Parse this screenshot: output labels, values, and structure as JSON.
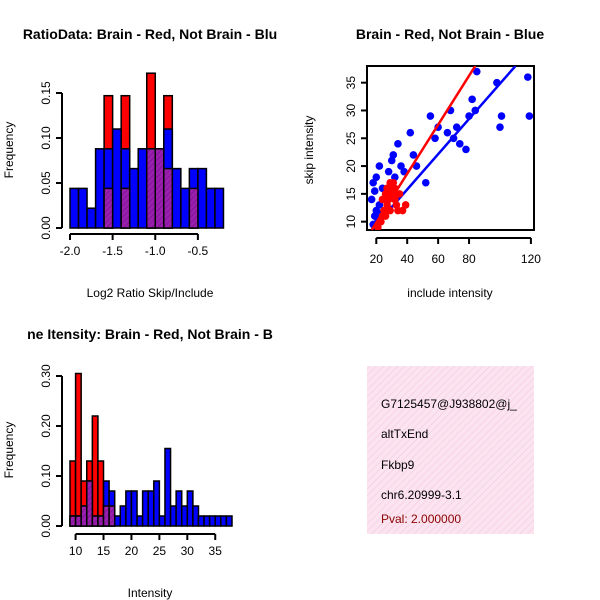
{
  "chart_data": [
    {
      "type": "bar",
      "title": "RatioData: Brain - Red, Not Brain - Blu",
      "xlabel": "Log2 Ratio Skip/Include",
      "ylabel": "Frequency",
      "xlim": [
        -2.0,
        -0.1
      ],
      "ylim": [
        0,
        0.18
      ],
      "xticks": [
        "-2.0",
        "-1.5",
        "-1.0",
        "-0.5"
      ],
      "yticks": [
        "0.00",
        "0.05",
        "0.10",
        "0.15"
      ],
      "bin_edges": [
        -2.0,
        -1.9,
        -1.8,
        -1.7,
        -1.6,
        -1.5,
        -1.4,
        -1.3,
        -1.2,
        -1.1,
        -1.0,
        -0.9,
        -0.8,
        -0.7,
        -0.6,
        -0.5,
        -0.4,
        -0.3,
        -0.2,
        -0.1
      ],
      "series": [
        {
          "name": "Brain",
          "color": "#ff0000",
          "values": [
            0,
            0,
            0,
            0,
            0.147,
            0,
            0.147,
            0,
            0,
            0.172,
            0,
            0.147,
            0,
            0,
            0.044,
            0,
            0,
            0,
            0
          ]
        },
        {
          "name": "Not Brain",
          "color": "#0000ff",
          "values": [
            0.044,
            0.044,
            0.022,
            0.088,
            0.088,
            0.11,
            0.088,
            0.066,
            0.088,
            0.088,
            0.088,
            0.11,
            0.066,
            0.044,
            0.066,
            0.066,
            0.044,
            0.044,
            0
          ]
        },
        {
          "name": "Overlap",
          "color": "#9a1fae",
          "values": [
            0,
            0,
            0,
            0,
            0.044,
            0,
            0.044,
            0,
            0,
            0.088,
            0.088,
            0.066,
            0,
            0,
            0.044,
            0,
            0,
            0,
            0
          ]
        }
      ]
    },
    {
      "type": "scatter",
      "title": "Brain - Red, Not Brain - Blue",
      "xlabel": "include intensity",
      "ylabel": "skip intensity",
      "xlim": [
        14,
        122
      ],
      "ylim": [
        8.5,
        38
      ],
      "xticks": [
        20,
        40,
        60,
        80,
        120
      ],
      "yticks": [
        10,
        15,
        20,
        25,
        30,
        35
      ],
      "series": [
        {
          "name": "Not Brain",
          "color": "#0000ff",
          "points": [
            [
              18,
              9.5
            ],
            [
              19,
              11
            ],
            [
              20,
              12
            ],
            [
              21,
              10.5
            ],
            [
              22,
              13
            ],
            [
              23,
              11.5
            ],
            [
              17,
              14
            ],
            [
              19,
              15.5
            ],
            [
              18,
              17
            ],
            [
              20,
              18
            ],
            [
              24,
              16
            ],
            [
              25,
              14
            ],
            [
              26,
              12
            ],
            [
              22,
              20
            ],
            [
              28,
              19
            ],
            [
              30,
              21
            ],
            [
              32,
              18
            ],
            [
              29,
              15
            ],
            [
              31,
              22
            ],
            [
              34,
              24
            ],
            [
              36,
              20
            ],
            [
              38,
              19
            ],
            [
              42,
              26
            ],
            [
              44,
              22
            ],
            [
              46,
              20
            ],
            [
              52,
              17
            ],
            [
              55,
              29
            ],
            [
              58,
              25
            ],
            [
              60,
              27
            ],
            [
              66,
              26
            ],
            [
              68,
              30
            ],
            [
              70,
              25
            ],
            [
              72,
              27
            ],
            [
              74,
              24
            ],
            [
              78,
              23
            ],
            [
              80,
              29
            ],
            [
              82,
              32
            ],
            [
              84,
              30
            ],
            [
              85,
              37
            ],
            [
              98,
              35
            ],
            [
              100,
              27
            ],
            [
              101,
              29
            ],
            [
              118,
              36
            ],
            [
              119,
              29
            ]
          ],
          "fit_line": [
            [
              17,
              8.5
            ],
            [
              110,
              38
            ]
          ]
        },
        {
          "name": "Brain",
          "color": "#ff0000",
          "points": [
            [
              21,
              9
            ],
            [
              23,
              10
            ],
            [
              24,
              11
            ],
            [
              25,
              12
            ],
            [
              26,
              11
            ],
            [
              27,
              13
            ],
            [
              28,
              14
            ],
            [
              29,
              12
            ],
            [
              30,
              15
            ],
            [
              31,
              16
            ],
            [
              32,
              14
            ],
            [
              33,
              13
            ],
            [
              34,
              12
            ],
            [
              35,
              15
            ],
            [
              27,
              16
            ],
            [
              29,
              17
            ],
            [
              30,
              16
            ],
            [
              31,
              17
            ],
            [
              32,
              16
            ],
            [
              33,
              15
            ],
            [
              37,
              12
            ],
            [
              39,
              13
            ],
            [
              24,
              14
            ],
            [
              26,
              15
            ]
          ],
          "fit_line": [
            [
              17,
              8.5
            ],
            [
              84,
              38
            ]
          ]
        }
      ]
    },
    {
      "type": "bar",
      "title": "ne Itensity: Brain - Red, Not Brain - B",
      "xlabel": "Intensity",
      "ylabel": "Frequency",
      "xlim": [
        9,
        38
      ],
      "ylim": [
        0,
        0.32
      ],
      "xticks": [
        "10",
        "15",
        "20",
        "25",
        "30",
        "35"
      ],
      "yticks": [
        "0.00",
        "0.10",
        "0.20",
        "0.30"
      ],
      "bin_edges": [
        9,
        10,
        11,
        12,
        13,
        14,
        15,
        16,
        17,
        18,
        19,
        20,
        21,
        22,
        23,
        24,
        25,
        26,
        27,
        28,
        29,
        30,
        31,
        32,
        33,
        34,
        35,
        36,
        37,
        38
      ],
      "series": [
        {
          "name": "Brain",
          "color": "#ff0000",
          "values": [
            0.13,
            0.305,
            0.09,
            0.13,
            0.22,
            0.13,
            0.04,
            0.04,
            0,
            0,
            0,
            0,
            0,
            0,
            0,
            0,
            0,
            0,
            0,
            0,
            0,
            0,
            0,
            0,
            0,
            0,
            0,
            0,
            0
          ]
        },
        {
          "name": "Not Brain",
          "color": "#0000ff",
          "values": [
            0.02,
            0.02,
            0.04,
            0.09,
            0.02,
            0.02,
            0.09,
            0.07,
            0.02,
            0.04,
            0.07,
            0.07,
            0.02,
            0.07,
            0.07,
            0.09,
            0.02,
            0.155,
            0.04,
            0.07,
            0.04,
            0.07,
            0.04,
            0.02,
            0.02,
            0.02,
            0.02,
            0.02,
            0.02
          ]
        },
        {
          "name": "Overlap",
          "color": "#9a1fae",
          "values": [
            0.02,
            0.02,
            0.04,
            0.09,
            0.02,
            0.02,
            0.04,
            0.04,
            0,
            0,
            0,
            0,
            0,
            0,
            0,
            0,
            0,
            0,
            0,
            0,
            0,
            0,
            0,
            0,
            0,
            0,
            0,
            0,
            0
          ]
        }
      ]
    }
  ],
  "info_box": {
    "lines": [
      "G7125457@J938802@j_",
      "altTxEnd",
      "Fkbp9",
      "chr6.20999-3.1"
    ],
    "pval": "Pval: 2.000000",
    "pval_color": "#8b0000",
    "background": "#fbe4f0"
  }
}
